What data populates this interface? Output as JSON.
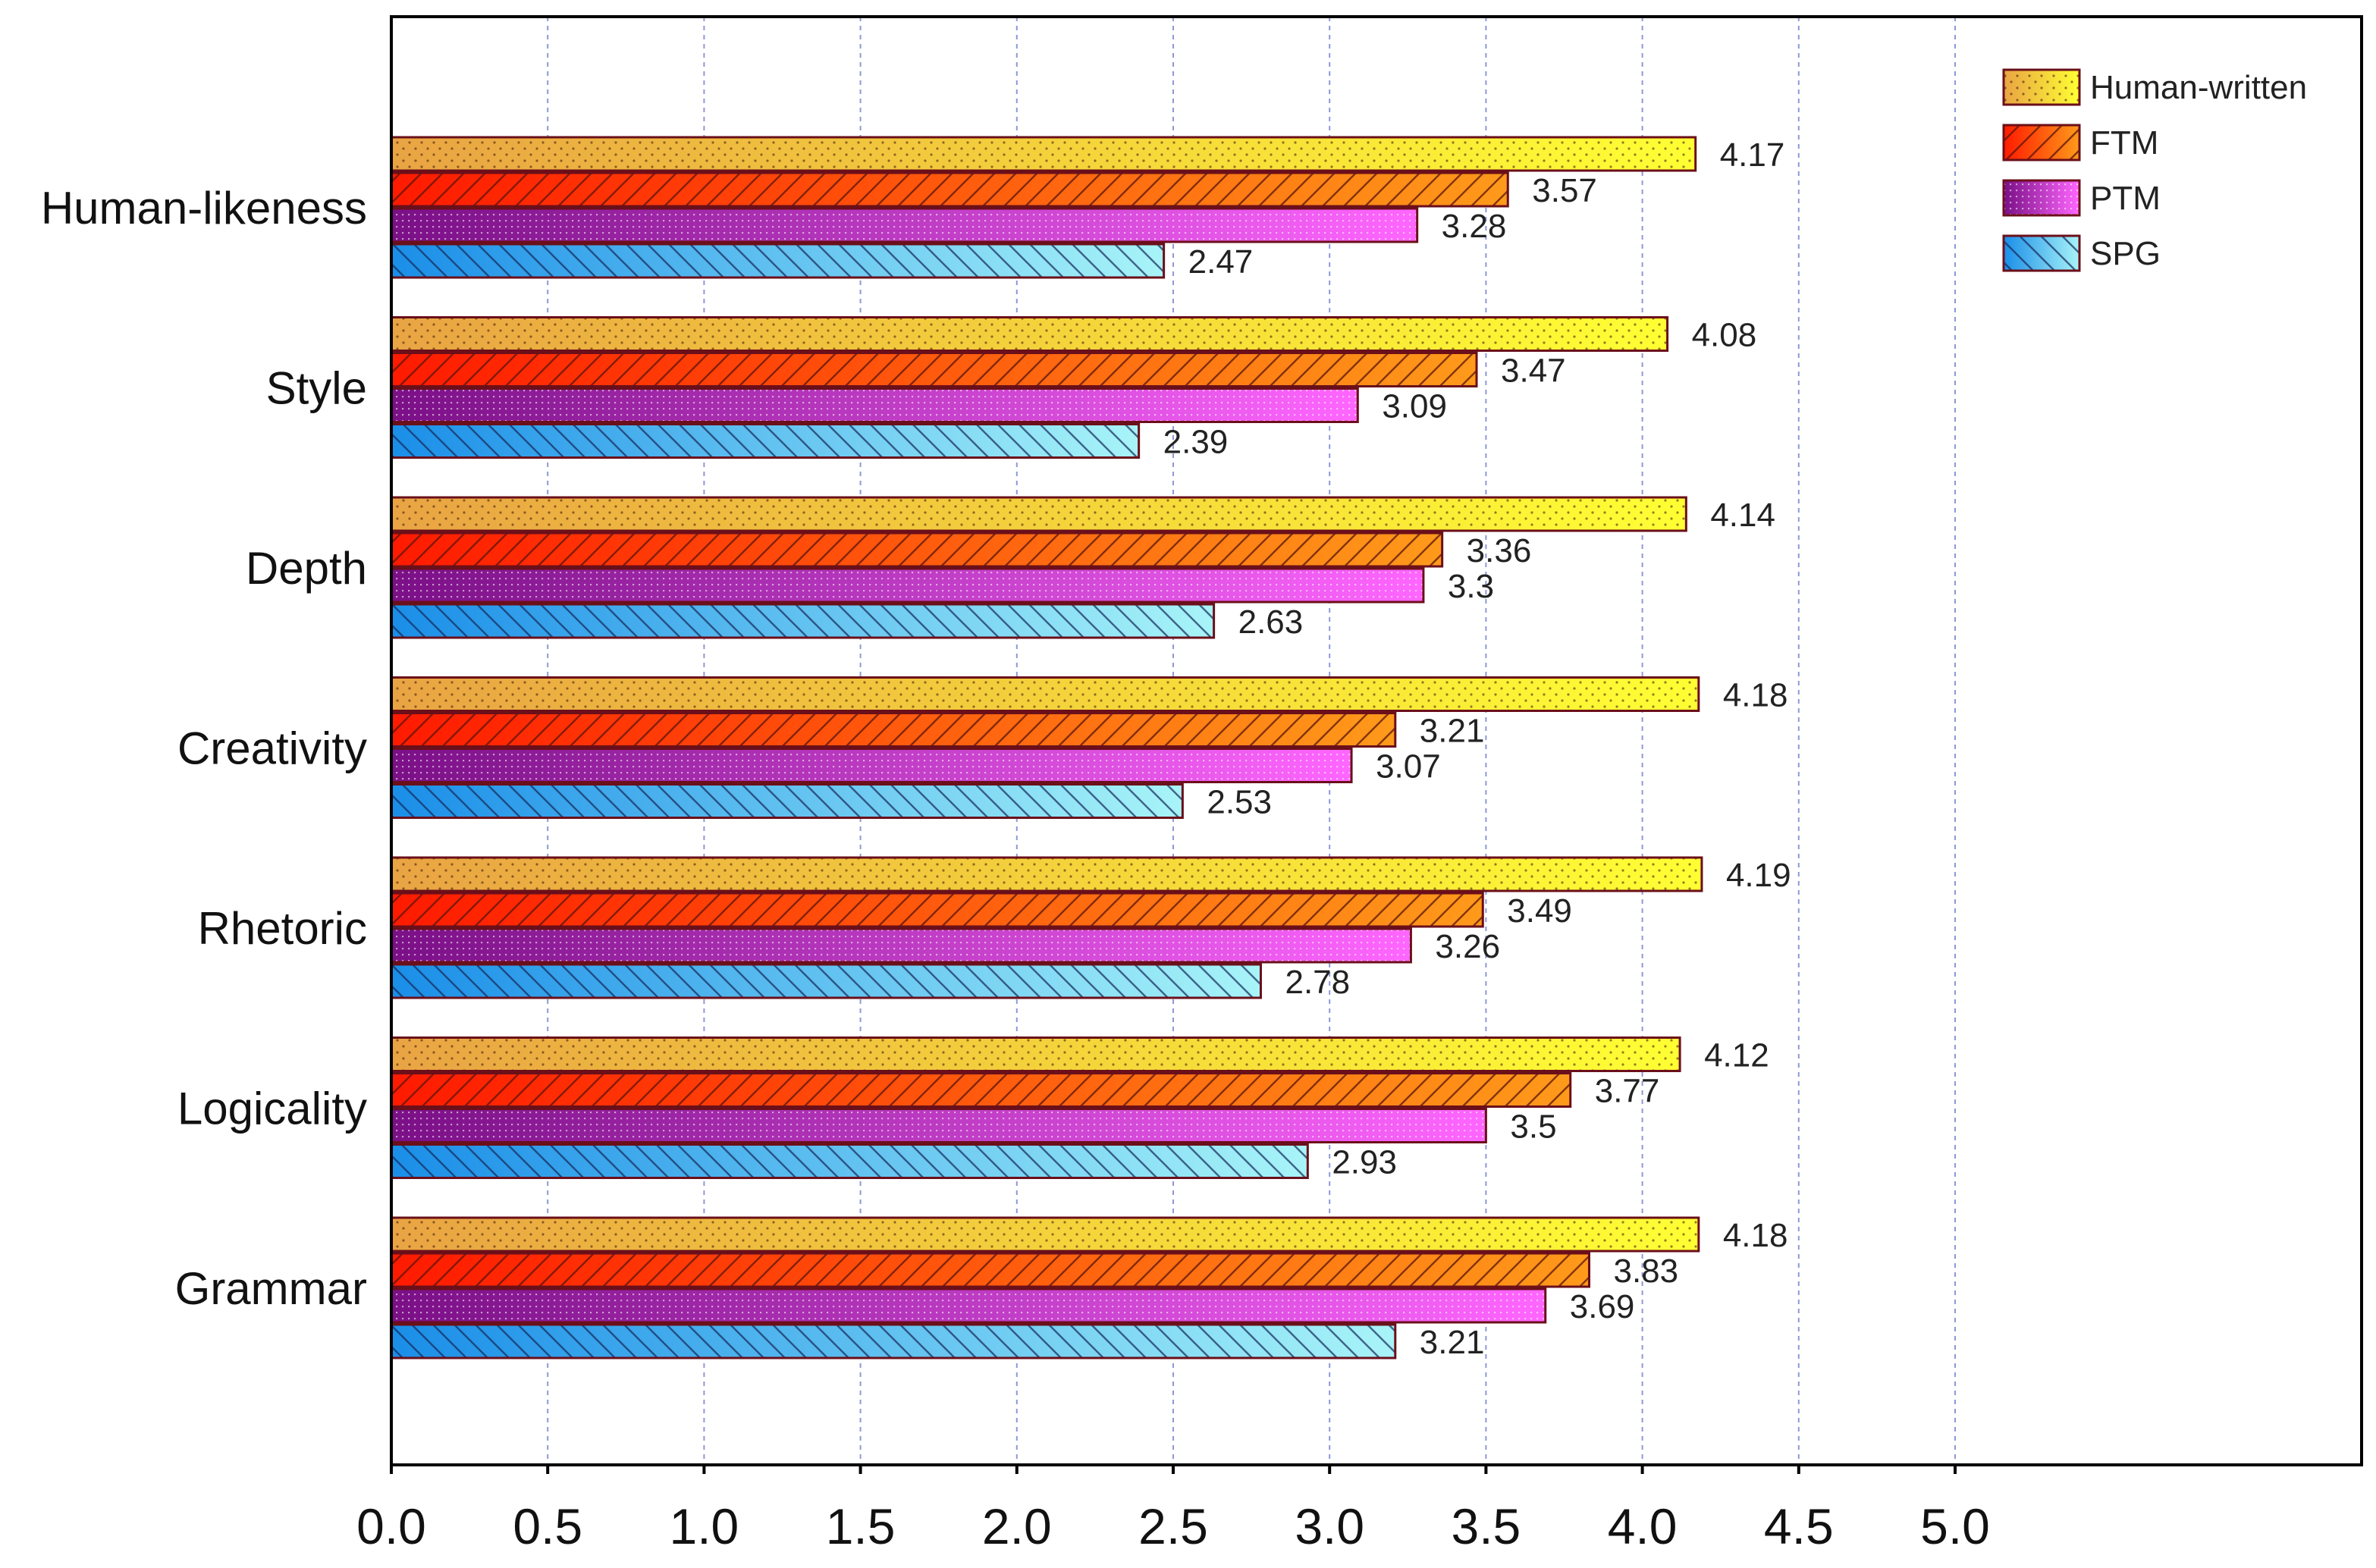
{
  "chart_data": {
    "type": "bar",
    "orientation": "horizontal",
    "title": "",
    "xlabel": "",
    "ylabel": "",
    "xlim": [
      0,
      6.3
    ],
    "xticks": [
      0.0,
      0.5,
      1.0,
      1.5,
      2.0,
      2.5,
      3.0,
      3.5,
      4.0,
      4.5,
      5.0
    ],
    "tick_labels": [
      "0.0",
      "0.5",
      "1.0",
      "1.5",
      "2.0",
      "2.5",
      "3.0",
      "3.5",
      "4.0",
      "4.5",
      "5.0"
    ],
    "grid": "vertical dashed",
    "legend_position": "top-right",
    "categories": [
      "Human-likeness",
      "Style",
      "Depth",
      "Creativity",
      "Rhetoric",
      "Logicality",
      "Grammar"
    ],
    "series": [
      {
        "name": "Human-written",
        "values": [
          4.17,
          4.08,
          4.14,
          4.18,
          4.19,
          4.12,
          4.18
        ],
        "value_labels": [
          "4.17",
          "4.08",
          "4.14",
          "4.18",
          "4.19",
          "4.12",
          "4.18"
        ],
        "pattern": "dots",
        "colors": [
          "#e9a443",
          "#ffff33"
        ]
      },
      {
        "name": "FTM",
        "values": [
          3.57,
          3.47,
          3.36,
          3.21,
          3.49,
          3.77,
          3.83
        ],
        "value_labels": [
          "3.57",
          "3.47",
          "3.36",
          "3.21",
          "3.49",
          "3.77",
          "3.83"
        ],
        "pattern": "forward-hatch",
        "colors": [
          "#ff1a00",
          "#ff9a1a"
        ]
      },
      {
        "name": "PTM",
        "values": [
          3.28,
          3.09,
          3.3,
          3.07,
          3.26,
          3.5,
          3.69
        ],
        "value_labels": [
          "3.28",
          "3.09",
          "3.3",
          "3.07",
          "3.26",
          "3.5",
          "3.69"
        ],
        "pattern": "grid-dots",
        "colors": [
          "#7a0f86",
          "#ff66ff"
        ]
      },
      {
        "name": "SPG",
        "values": [
          2.47,
          2.39,
          2.63,
          2.53,
          2.78,
          2.93,
          3.21
        ],
        "value_labels": [
          "2.47",
          "2.39",
          "2.63",
          "2.53",
          "2.78",
          "2.93",
          "3.21"
        ],
        "pattern": "back-hatch",
        "colors": [
          "#1a8ee8",
          "#a8f4f8"
        ]
      }
    ]
  },
  "colors": {
    "bar_outline": "#6b0f1a",
    "grid": "#8f97d8",
    "axis": "#000000"
  }
}
